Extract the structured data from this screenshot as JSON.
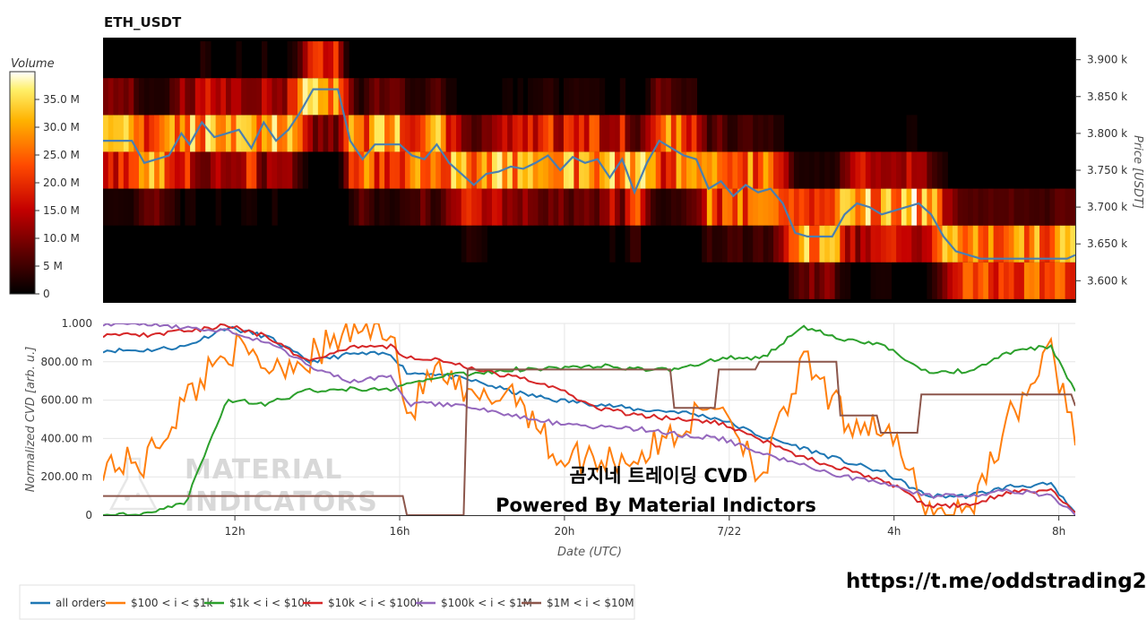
{
  "chart_data": [
    {
      "type": "heatmap",
      "title": "ETH_USDT",
      "colorbar": {
        "title": "Volume",
        "ticks": [
          "0",
          "5 M",
          "10.0 M",
          "15.0 M",
          "20.0 M",
          "25.0 M",
          "30.0 M",
          "35.0 M"
        ],
        "tick_values": [
          0,
          5,
          10,
          15,
          20,
          25,
          30,
          35
        ],
        "max": 40
      },
      "ylabel": "Price [USDT]",
      "yticks": [
        "3.600 k",
        "3.650 k",
        "3.700 k",
        "3.750 k",
        "3.800 k",
        "3.850 k",
        "3.900 k"
      ],
      "ytick_values": [
        3600,
        3650,
        3700,
        3750,
        3800,
        3850,
        3900
      ],
      "ylim": [
        3570,
        3930
      ],
      "xlim": [
        0,
        23.6
      ],
      "price_bands": [
        3575,
        3625,
        3675,
        3725,
        3775,
        3825,
        3875,
        3925
      ],
      "price_series": {
        "x": [
          0,
          0.7,
          1.0,
          1.3,
          1.6,
          1.9,
          2.1,
          2.4,
          2.7,
          3.0,
          3.3,
          3.6,
          3.9,
          4.2,
          4.5,
          4.8,
          5.1,
          5.4,
          5.7,
          6.0,
          6.3,
          6.6,
          6.9,
          7.2,
          7.5,
          7.8,
          8.1,
          8.4,
          8.7,
          9.0,
          9.3,
          9.6,
          9.9,
          10.2,
          10.5,
          10.8,
          11.1,
          11.4,
          11.7,
          12.0,
          12.3,
          12.6,
          12.9,
          13.2,
          13.5,
          13.8,
          14.1,
          14.4,
          14.7,
          15.0,
          15.3,
          15.6,
          15.9,
          16.2,
          16.5,
          16.8,
          17.1,
          17.4,
          17.7,
          18.0,
          18.3,
          18.6,
          18.9,
          19.2,
          19.5,
          19.8,
          20.1,
          20.4,
          20.7,
          21.0,
          21.3,
          21.6,
          21.9,
          22.2,
          22.5,
          22.8,
          23.1,
          23.4,
          23.6
        ],
        "y": [
          3790,
          3790,
          3760,
          3765,
          3770,
          3800,
          3785,
          3815,
          3795,
          3800,
          3805,
          3780,
          3815,
          3790,
          3805,
          3830,
          3860,
          3860,
          3860,
          3790,
          3765,
          3785,
          3785,
          3785,
          3770,
          3765,
          3785,
          3760,
          3745,
          3730,
          3745,
          3748,
          3755,
          3752,
          3760,
          3770,
          3750,
          3768,
          3760,
          3765,
          3740,
          3765,
          3720,
          3760,
          3790,
          3780,
          3770,
          3765,
          3725,
          3735,
          3715,
          3730,
          3720,
          3725,
          3705,
          3665,
          3660,
          3660,
          3660,
          3690,
          3705,
          3700,
          3690,
          3695,
          3700,
          3705,
          3690,
          3660,
          3640,
          3635,
          3630,
          3630,
          3630,
          3630,
          3630,
          3630,
          3630,
          3630,
          3635
        ]
      }
    },
    {
      "type": "line",
      "xlabel": "Date (UTC)",
      "ylabel": "Normalized CVD [arb. u.]",
      "xticks": [
        "12h",
        "16h",
        "20h",
        "7/22",
        "4h",
        "8h"
      ],
      "xtick_values": [
        3.2,
        7.2,
        11.2,
        15.2,
        19.2,
        23.2
      ],
      "xlim": [
        0,
        23.6
      ],
      "yticks": [
        "0",
        "200.00 m",
        "400.00 m",
        "600.00 m",
        "800.00 m",
        "1.000"
      ],
      "ytick_values": [
        0,
        0.2,
        0.4,
        0.6,
        0.8,
        1.0
      ],
      "ylim": [
        0,
        1.0
      ],
      "x": [
        0,
        1,
        2,
        3,
        4,
        5,
        6,
        7,
        7.4,
        8,
        9,
        10,
        11,
        12,
        13,
        14,
        15,
        16,
        17,
        18,
        19,
        20,
        21,
        22,
        23,
        23.6
      ],
      "series": [
        {
          "name": "all orders",
          "color": "#1f77b4",
          "values": [
            0.86,
            0.86,
            0.88,
            0.98,
            0.93,
            0.8,
            0.84,
            0.84,
            0.74,
            0.74,
            0.7,
            0.64,
            0.6,
            0.58,
            0.55,
            0.54,
            0.5,
            0.41,
            0.35,
            0.28,
            0.22,
            0.1,
            0.1,
            0.15,
            0.16,
            0.01
          ]
        },
        {
          "name": "$100 < i < $1k",
          "color": "#ff7f0e",
          "values": [
            0.27,
            0.27,
            0.6,
            0.88,
            0.78,
            0.82,
            0.96,
            1.0,
            0.5,
            0.76,
            0.58,
            0.66,
            0.3,
            0.3,
            0.3,
            0.45,
            0.6,
            0.2,
            0.8,
            0.5,
            0.46,
            0.02,
            0.02,
            0.5,
            0.85,
            0.45
          ]
        },
        {
          "name": "$1k < i < $10k",
          "color": "#2ca02c",
          "values": [
            0.0,
            0.0,
            0.06,
            0.6,
            0.58,
            0.65,
            0.66,
            0.66,
            0.68,
            0.72,
            0.74,
            0.76,
            0.77,
            0.78,
            0.76,
            0.76,
            0.82,
            0.82,
            0.98,
            0.92,
            0.88,
            0.75,
            0.75,
            0.85,
            0.88,
            0.65
          ]
        },
        {
          "name": "$10k < i < $100k",
          "color": "#d62728",
          "values": [
            0.94,
            0.94,
            0.96,
            0.99,
            0.93,
            0.8,
            0.88,
            0.88,
            0.82,
            0.82,
            0.76,
            0.72,
            0.66,
            0.56,
            0.52,
            0.5,
            0.48,
            0.39,
            0.3,
            0.24,
            0.18,
            0.05,
            0.05,
            0.12,
            0.13,
            0.01
          ]
        },
        {
          "name": "$100k < i < $1M",
          "color": "#9467bd",
          "values": [
            1.0,
            1.0,
            0.98,
            0.96,
            0.9,
            0.78,
            0.7,
            0.72,
            0.58,
            0.58,
            0.56,
            0.52,
            0.48,
            0.46,
            0.45,
            0.42,
            0.4,
            0.32,
            0.26,
            0.2,
            0.17,
            0.1,
            0.1,
            0.13,
            0.1,
            0.01
          ]
        },
        {
          "name": "$1M < i < $10M",
          "color": "#8c564b",
          "values": [
            0.1,
            0.1,
            0.1,
            0.1,
            0.1,
            0.1,
            0.1,
            0.1,
            0.0,
            0.0,
            0.76,
            0.76,
            0.76,
            0.76,
            0.76,
            0.56,
            0.76,
            0.8,
            0.8,
            0.52,
            0.43,
            0.63,
            0.63,
            0.63,
            0.63,
            0.57
          ]
        }
      ],
      "legend_position": "bottom-left",
      "watermark": [
        "MATERIAL",
        "INDICATORS"
      ],
      "overlay_text": [
        "곰지네 트레이딩 CVD",
        "Powered By Material Indictors"
      ]
    }
  ],
  "footer_link": "https://t.me/oddstrading2"
}
